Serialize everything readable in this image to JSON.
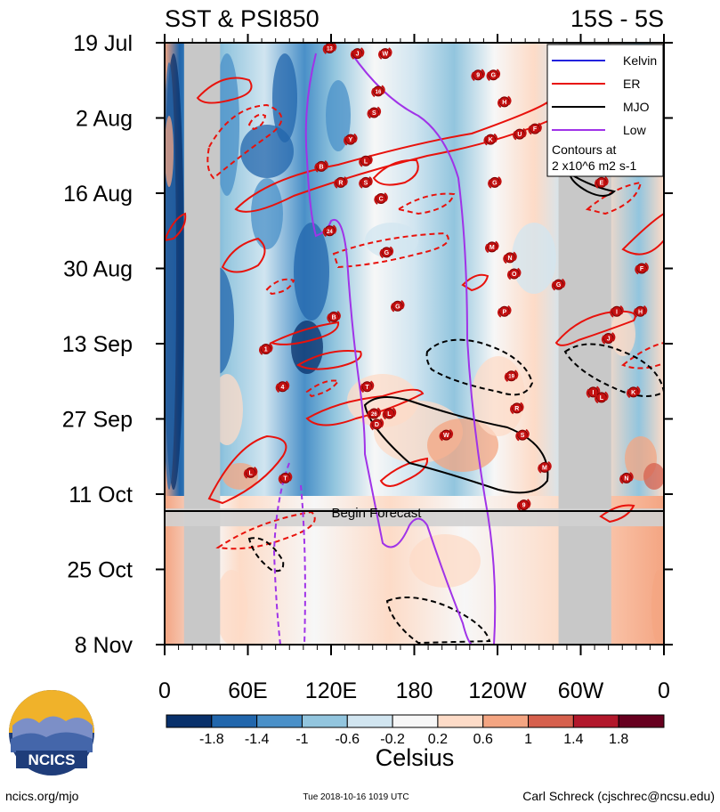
{
  "header": {
    "title_left": "SST & PSI850",
    "title_right": "15S - 5S"
  },
  "legend": {
    "items": [
      {
        "label": "Kelvin",
        "color": "#2222dd"
      },
      {
        "label": "ER",
        "color": "#e8120c"
      },
      {
        "label": "MJO",
        "color": "#000000"
      },
      {
        "label": "Low",
        "color": "#a033e8"
      }
    ],
    "contour_note_line1": "Contours at",
    "contour_note_line2": "2 x10^6 m2 s-1"
  },
  "forecast_label": "Begin Forecast",
  "colorbar": {
    "ticks": [
      "-1.8",
      "-1.4",
      "-1",
      "-0.6",
      "-0.2",
      "0.2",
      "0.6",
      "1",
      "1.4",
      "1.8"
    ],
    "colors": [
      "#08306b",
      "#2166ac",
      "#4a90c8",
      "#92c5de",
      "#d1e5f0",
      "#f7f7f7",
      "#fddbc7",
      "#f4a582",
      "#d6604d",
      "#b2182b",
      "#67001f"
    ],
    "label": "Celsius"
  },
  "footer": {
    "logo_text": "NCICS",
    "left": "ncics.org/mjo",
    "center": "Tue 2018-10-16 1019 UTC",
    "right": "Carl Schreck (cjschrec@ncsu.edu)"
  },
  "chart_data": {
    "type": "heatmap",
    "title": "SST & PSI850",
    "subtitle": "15S - 5S",
    "x_tick_labels": [
      "0",
      "60E",
      "120E",
      "180",
      "120W",
      "60W",
      "0"
    ],
    "x_ticks_deg": [
      0,
      60,
      120,
      180,
      240,
      300,
      360
    ],
    "xlim": [
      0,
      360
    ],
    "y_tick_labels": [
      "19 Jul",
      "2 Aug",
      "16 Aug",
      "30 Aug",
      "13 Sep",
      "27 Sep",
      "11 Oct",
      "25 Oct",
      "8 Nov"
    ],
    "ylim": [
      "2018-07-19",
      "2018-11-08"
    ],
    "forecast_start": "2018-10-14",
    "land_bands_deg": [
      [
        14,
        40
      ],
      [
        284,
        322
      ]
    ],
    "colorbar_label": "Celsius",
    "contour_types": [
      "Kelvin",
      "ER",
      "MJO",
      "Low"
    ],
    "contour_interval": "2 x10^6 m2 s-1",
    "storm_markers": [
      {
        "label": "13",
        "lon": 119,
        "date": "2018-07-20"
      },
      {
        "label": "J",
        "lon": 139,
        "date": "2018-07-21"
      },
      {
        "label": "W",
        "lon": 159,
        "date": "2018-07-21"
      },
      {
        "label": "9",
        "lon": 226,
        "date": "2018-07-25"
      },
      {
        "label": "G",
        "lon": 237,
        "date": "2018-07-25"
      },
      {
        "label": "16",
        "lon": 154,
        "date": "2018-07-28"
      },
      {
        "label": "H",
        "lon": 245,
        "date": "2018-07-30"
      },
      {
        "label": "S",
        "lon": 151,
        "date": "2018-08-01"
      },
      {
        "label": "Y",
        "lon": 134,
        "date": "2018-08-06"
      },
      {
        "label": "K",
        "lon": 235,
        "date": "2018-08-06"
      },
      {
        "label": "U",
        "lon": 256,
        "date": "2018-08-05"
      },
      {
        "label": "F",
        "lon": 267,
        "date": "2018-08-04"
      },
      {
        "label": "L",
        "lon": 145,
        "date": "2018-08-10"
      },
      {
        "label": "B",
        "lon": 113,
        "date": "2018-08-11"
      },
      {
        "label": "R",
        "lon": 127,
        "date": "2018-08-14"
      },
      {
        "label": "S",
        "lon": 145,
        "date": "2018-08-14"
      },
      {
        "label": "C",
        "lon": 156,
        "date": "2018-08-17"
      },
      {
        "label": "G",
        "lon": 238,
        "date": "2018-08-14"
      },
      {
        "label": "E",
        "lon": 315,
        "date": "2018-08-14"
      },
      {
        "label": "24",
        "lon": 119,
        "date": "2018-08-23"
      },
      {
        "label": "G",
        "lon": 160,
        "date": "2018-08-27"
      },
      {
        "label": "M",
        "lon": 236,
        "date": "2018-08-26"
      },
      {
        "label": "N",
        "lon": 249,
        "date": "2018-08-28"
      },
      {
        "label": "O",
        "lon": 252,
        "date": "2018-08-31"
      },
      {
        "label": "F",
        "lon": 344,
        "date": "2018-08-30"
      },
      {
        "label": "G",
        "lon": 284,
        "date": "2018-09-02"
      },
      {
        "label": "G",
        "lon": 168,
        "date": "2018-09-06"
      },
      {
        "label": "P",
        "lon": 245,
        "date": "2018-09-07"
      },
      {
        "label": "B",
        "lon": 122,
        "date": "2018-09-08"
      },
      {
        "label": "I",
        "lon": 326,
        "date": "2018-09-07"
      },
      {
        "label": "H",
        "lon": 343,
        "date": "2018-09-07"
      },
      {
        "label": "J",
        "lon": 320,
        "date": "2018-09-12"
      },
      {
        "label": "1",
        "lon": 73,
        "date": "2018-09-14"
      },
      {
        "label": "19",
        "lon": 250,
        "date": "2018-09-19"
      },
      {
        "label": "4",
        "lon": 85,
        "date": "2018-09-21"
      },
      {
        "label": "T",
        "lon": 146,
        "date": "2018-09-21"
      },
      {
        "label": "K",
        "lon": 338,
        "date": "2018-09-22"
      },
      {
        "label": "I",
        "lon": 309,
        "date": "2018-09-22"
      },
      {
        "label": "L",
        "lon": 315,
        "date": "2018-09-23"
      },
      {
        "label": "R",
        "lon": 254,
        "date": "2018-09-25"
      },
      {
        "label": "26",
        "lon": 151,
        "date": "2018-09-26"
      },
      {
        "label": "L",
        "lon": 162,
        "date": "2018-09-26"
      },
      {
        "label": "D",
        "lon": 153,
        "date": "2018-09-28"
      },
      {
        "label": "W",
        "lon": 203,
        "date": "2018-09-30"
      },
      {
        "label": "S",
        "lon": 258,
        "date": "2018-09-30"
      },
      {
        "label": "M",
        "lon": 274,
        "date": "2018-10-06"
      },
      {
        "label": "L",
        "lon": 62,
        "date": "2018-10-07"
      },
      {
        "label": "T",
        "lon": 87,
        "date": "2018-10-08"
      },
      {
        "label": "N",
        "lon": 333,
        "date": "2018-10-08"
      },
      {
        "label": "9",
        "lon": 259,
        "date": "2018-10-13"
      }
    ]
  }
}
